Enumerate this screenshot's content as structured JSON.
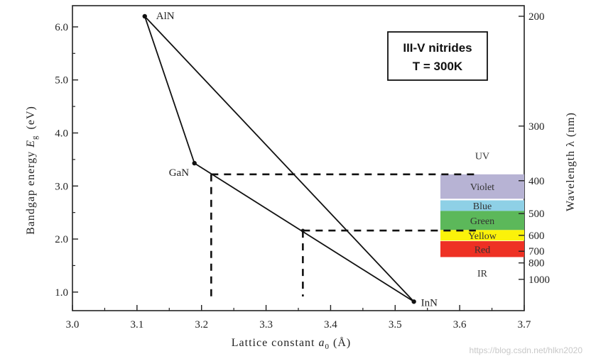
{
  "chart_data": {
    "type": "scatter",
    "title": "",
    "xlabel": "Lattice constant a0 (Å)",
    "xlabel_main": "Lattice constant ",
    "xlabel_sym": "a",
    "xlabel_sub": "0",
    "xlabel_unit": " (Å)",
    "ylabel": "Bandgap energy Eg (eV)",
    "ylabel_main": "Bandgap energy ",
    "ylabel_sym": "E",
    "ylabel_sub": "g",
    "ylabel_unit": "(eV)",
    "y2label": "Wavelength λ (nm)",
    "xlim": [
      3.0,
      3.7
    ],
    "ylim": [
      0.65,
      6.4
    ],
    "x_ticks": [
      3.0,
      3.1,
      3.2,
      3.3,
      3.4,
      3.5,
      3.6,
      3.7
    ],
    "x_tick_labels": [
      "3.0",
      "3.1",
      "3.2",
      "3.3",
      "3.4",
      "3.5",
      "3.6",
      "3.7"
    ],
    "y_ticks": [
      1.0,
      2.0,
      3.0,
      4.0,
      5.0,
      6.0
    ],
    "y_tick_labels": [
      "1.0",
      "2.0",
      "3.0",
      "4.0",
      "5.0",
      "6.0"
    ],
    "y2_ticks": [
      {
        "label": "200",
        "eV": 6.2
      },
      {
        "label": "300",
        "eV": 4.13
      },
      {
        "label": "400",
        "eV": 3.1
      },
      {
        "label": "500",
        "eV": 2.48
      },
      {
        "label": "600",
        "eV": 2.07
      },
      {
        "label": "700",
        "eV": 1.77
      },
      {
        "label": "800",
        "eV": 1.55
      },
      {
        "label": "1000",
        "eV": 1.24
      }
    ],
    "points": [
      {
        "name": "AlN",
        "x": 3.112,
        "y": 6.2
      },
      {
        "name": "GaN",
        "x": 3.189,
        "y": 3.43
      },
      {
        "name": "InN",
        "x": 3.529,
        "y": 0.82
      }
    ],
    "edges": [
      [
        "AlN",
        "GaN"
      ],
      [
        "GaN",
        "InN"
      ],
      [
        "AlN",
        "InN"
      ]
    ],
    "markers": [
      {
        "name": "blue-led",
        "x": 3.215,
        "y": 3.22,
        "x_end": 3.57
      },
      {
        "name": "yellow-led",
        "x": 3.357,
        "y": 2.16,
        "x_end": 3.57
      }
    ],
    "extra_points": [
      {
        "x": 3.357,
        "y": 2.16
      }
    ],
    "spectrum_bands": [
      {
        "label": "Violet",
        "y_top": 3.22,
        "y_bottom": 2.76,
        "color": "#b7b3d4"
      },
      {
        "label": "Blue",
        "y_top": 2.73,
        "y_bottom": 2.53,
        "color": "#8ed0e6"
      },
      {
        "label": "Green",
        "y_top": 2.53,
        "y_bottom": 2.17,
        "color": "#5cb85a"
      },
      {
        "label": "Yellow",
        "y_top": 2.17,
        "y_bottom": 1.97,
        "color": "#fbf20a"
      },
      {
        "label": "Red",
        "y_top": 1.96,
        "y_bottom": 1.66,
        "color": "#ee3124"
      }
    ],
    "region_labels": [
      {
        "label": "UV",
        "y": 3.57
      },
      {
        "label": "IR",
        "y": 1.36
      }
    ],
    "info_box": {
      "line1": "III-V nitrides",
      "line2": "T = 300K"
    }
  },
  "watermark": "https://blog.csdn.net/hlkn2020"
}
